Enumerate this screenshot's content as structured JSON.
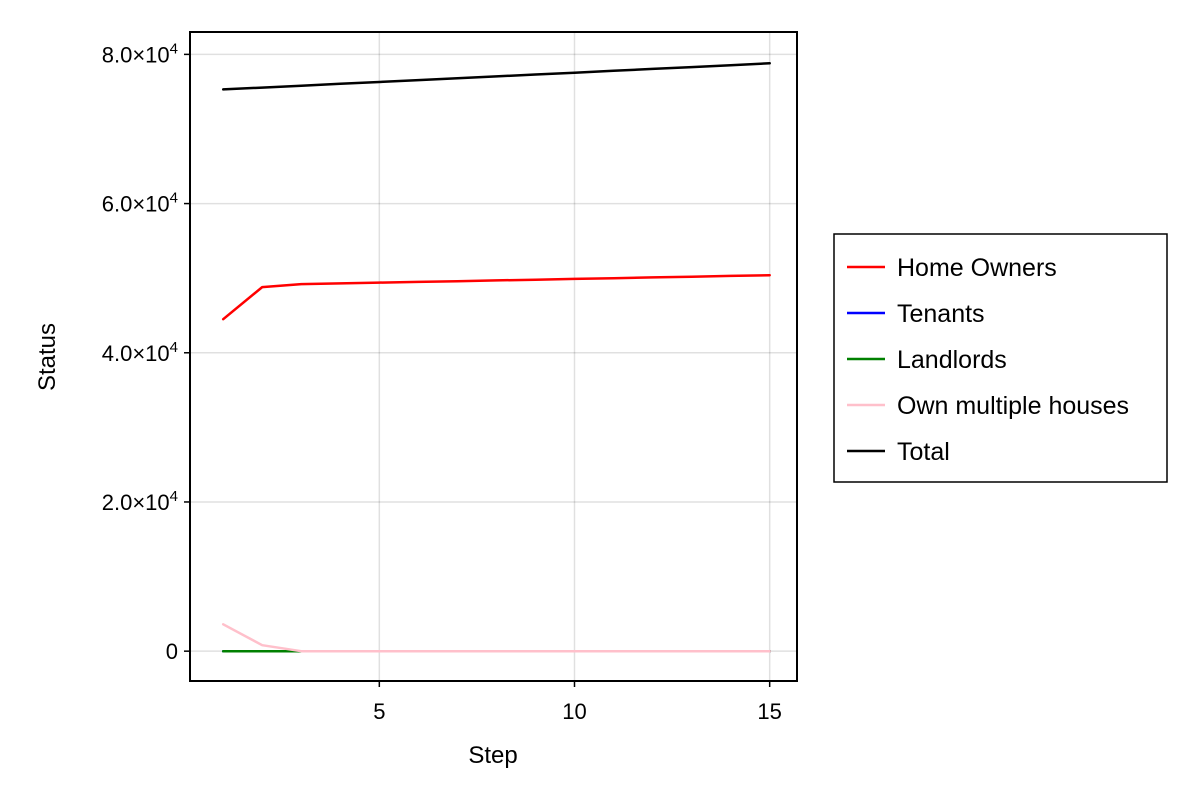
{
  "chart_data": {
    "type": "line",
    "title": "",
    "xlabel": "Step",
    "ylabel": "Status",
    "xlim": [
      0.15,
      15.7
    ],
    "ylim": [
      -4000,
      83000
    ],
    "x_ticks": [
      5,
      10,
      15
    ],
    "x_tick_labels": [
      "5",
      "10",
      "15"
    ],
    "y_ticks": [
      {
        "value": 0,
        "base": "0",
        "exp": ""
      },
      {
        "value": 20000,
        "base": "2.0×10",
        "exp": "4"
      },
      {
        "value": 40000,
        "base": "4.0×10",
        "exp": "4"
      },
      {
        "value": 60000,
        "base": "6.0×10",
        "exp": "4"
      },
      {
        "value": 80000,
        "base": "8.0×10",
        "exp": "4"
      }
    ],
    "grid": true,
    "legend_position": "right",
    "x": [
      1,
      2,
      3,
      4,
      5,
      6,
      7,
      8,
      9,
      10,
      11,
      12,
      13,
      14,
      15
    ],
    "series": [
      {
        "name": "Home Owners",
        "color": "#ff0000",
        "values": [
          44500,
          48800,
          49200,
          49300,
          49400,
          49500,
          49600,
          49700,
          49800,
          49900,
          50000,
          50100,
          50200,
          50300,
          50400
        ]
      },
      {
        "name": "Tenants",
        "color": "#0000ff",
        "values": [
          0,
          0,
          0,
          0,
          0,
          0,
          0,
          0,
          0,
          0,
          0,
          0,
          0,
          0,
          0
        ]
      },
      {
        "name": "Landlords",
        "color": "#008000",
        "values": [
          0,
          0,
          0,
          0,
          0,
          0,
          0,
          0,
          0,
          0,
          0,
          0,
          0,
          0,
          0
        ]
      },
      {
        "name": "Own multiple houses",
        "color": "#ffc0cb",
        "values": [
          3600,
          800,
          0,
          0,
          0,
          0,
          0,
          0,
          0,
          0,
          0,
          0,
          0,
          0,
          0
        ]
      },
      {
        "name": "Total",
        "color": "#000000",
        "values": [
          75300,
          75550,
          75800,
          76050,
          76300,
          76550,
          76800,
          77050,
          77300,
          77550,
          77800,
          78050,
          78300,
          78550,
          78800
        ]
      }
    ]
  }
}
